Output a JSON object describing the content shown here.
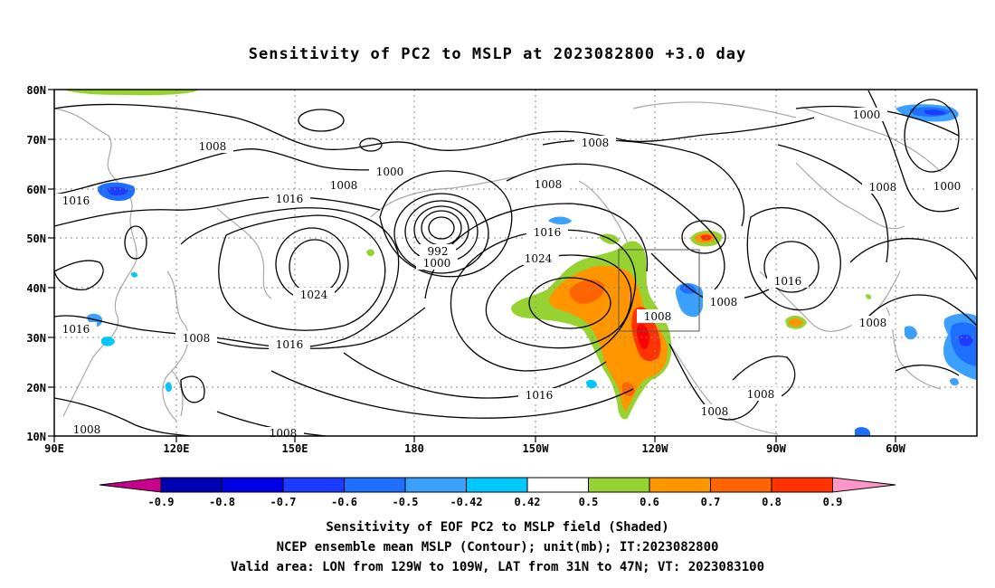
{
  "title": "Sensitivity of PC2 to MSLP at 2023082800 +3.0 day",
  "axes": {
    "lon_labels": [
      "90E",
      "120E",
      "150E",
      "180",
      "150W",
      "120W",
      "90W",
      "60W"
    ],
    "lat_labels": [
      "80N",
      "70N",
      "60N",
      "50N",
      "40N",
      "30N",
      "20N",
      "10N"
    ]
  },
  "colorbar": {
    "tick_labels": [
      "-0.9",
      "-0.8",
      "-0.7",
      "-0.6",
      "-0.5",
      "-0.42",
      "0.42",
      "0.5",
      "0.6",
      "0.7",
      "0.8",
      "0.9"
    ],
    "colors": [
      "#c8008c",
      "#0000b4",
      "#0000e6",
      "#1e3cff",
      "#1e6eff",
      "#3ca0ff",
      "#00c8ff",
      "#ffffff",
      "#96d232",
      "#ff9600",
      "#ff6400",
      "#ff3200",
      "#ff0000",
      "#ff96c8"
    ]
  },
  "contour_labels": [
    "1008",
    "1000",
    "1016",
    "1008",
    "1016",
    "1024",
    "992",
    "1000",
    "1008",
    "1008",
    "1016",
    "1024",
    "1016",
    "1008",
    "1016",
    "1008",
    "1008",
    "1008",
    "1000",
    "1000",
    "1008",
    "1016",
    "1008",
    "1016",
    "1016",
    "1008",
    "1008",
    "1008"
  ],
  "footer": {
    "line1": "Sensitivity of EOF PC2 to MSLP field (Shaded)",
    "line2": "NCEP ensemble mean MSLP (Contour); unit(mb); IT:2023082800",
    "line3": "Valid area: LON from 129W to 109W, LAT from 31N to 47N; VT: 2023083100"
  },
  "valid_area": {
    "lon_from": "129W",
    "lon_to": "109W",
    "lat_from": "31N",
    "lat_to": "47N"
  }
}
